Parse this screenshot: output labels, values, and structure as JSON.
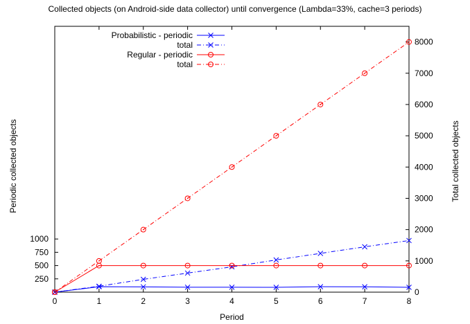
{
  "chart_data": {
    "type": "line",
    "title": "Collected objects (on Android-side data collector) until convergence (Lambda=33%, cache=3 periods)",
    "xlabel": "Period",
    "ylabel": "Periodic collected objects",
    "y2label": "Total collected objects",
    "x": [
      0,
      1,
      2,
      3,
      4,
      5,
      6,
      7,
      8
    ],
    "xlim": [
      0,
      8
    ],
    "x_ticks": [
      "0",
      "1",
      "2",
      "3",
      "4",
      "5",
      "6",
      "7",
      "8"
    ],
    "ylim": [
      0,
      5000
    ],
    "y_ticks": [
      "250",
      "500",
      "750",
      "1000"
    ],
    "y_tick_values": [
      250,
      500,
      750,
      1000
    ],
    "y2lim": [
      0,
      8500
    ],
    "y2_ticks": [
      "0",
      "1000",
      "2000",
      "3000",
      "4000",
      "5000",
      "6000",
      "7000",
      "8000"
    ],
    "y2_tick_values": [
      0,
      1000,
      2000,
      3000,
      4000,
      5000,
      6000,
      7000,
      8000
    ],
    "grid": false,
    "legend_position": "top-left",
    "series": [
      {
        "name": "Probabilistic - periodic",
        "axis": "left",
        "color": "#0000ff",
        "dash": "solid",
        "marker": "x",
        "values": [
          0,
          102,
          100,
          93,
          93,
          91,
          103,
          101,
          91
        ]
      },
      {
        "name": "total",
        "axis": "right",
        "color": "#0000ff",
        "dash": "dashdot",
        "marker": "x",
        "values": [
          0,
          190,
          410,
          610,
          810,
          1030,
          1240,
          1450,
          1650
        ]
      },
      {
        "name": "Regular - periodic",
        "axis": "left",
        "color": "#ff0000",
        "dash": "solid",
        "marker": "circle",
        "values": [
          0,
          500,
          500,
          500,
          500,
          500,
          500,
          500,
          500
        ]
      },
      {
        "name": "total",
        "axis": "right",
        "color": "#ff0000",
        "dash": "dashdot",
        "marker": "circle",
        "values": [
          0,
          1000,
          2000,
          3000,
          4000,
          5000,
          6000,
          7000,
          8000
        ]
      }
    ]
  }
}
